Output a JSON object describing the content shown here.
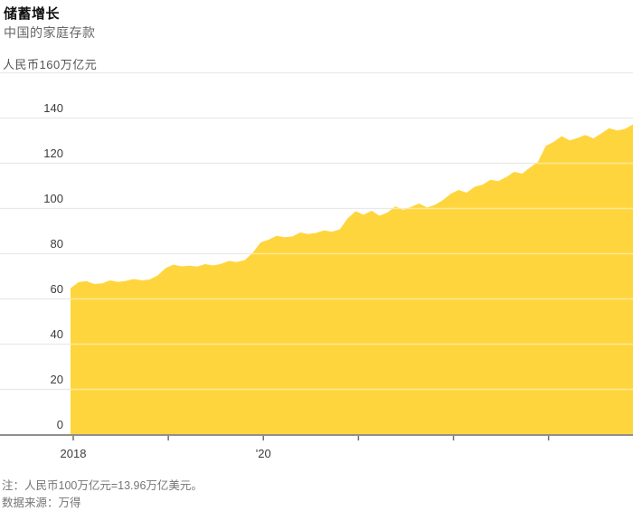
{
  "header": {
    "title": "储蓄增长",
    "subtitle": "中国的家庭存款",
    "unit_label": "人民币160万亿元"
  },
  "footer": {
    "note": "注：人民币100万亿元=13.96万亿美元。",
    "source": "数据来源：万得"
  },
  "colors": {
    "area_fill": "#FFD53E",
    "gridline": "#e9e9e9",
    "gridline_over_area": "rgba(255,255,255,0.45)",
    "axis_line": "#8f8f8f",
    "tick_mark": "#6f6f6f",
    "tick_text": "#3c3c3c"
  },
  "chart_data": {
    "type": "area",
    "title": "储蓄增长",
    "subtitle": "中国的家庭存款",
    "ylabel": "人民币160万亿元",
    "unit": "万亿元 (trillion yuan)",
    "series_name": "中国家庭存款",
    "x_frequency": "monthly",
    "x_start": {
      "year": 2018,
      "month": 1
    },
    "x_end": {
      "year": 2023,
      "month": 12
    },
    "x_tick_years": [
      2018,
      2019,
      2020,
      2021,
      2022,
      2023
    ],
    "x_tick_labels": [
      {
        "year": 2018,
        "label": "2018"
      },
      {
        "year": 2020,
        "label": "'20"
      }
    ],
    "y_ticks": [
      0,
      20,
      40,
      60,
      80,
      100,
      120,
      140
    ],
    "ylim": [
      0,
      160
    ],
    "grid": "horizontal",
    "legend": "none",
    "values": [
      64.5,
      67.2,
      67.7,
      66.4,
      66.7,
      68.0,
      67.3,
      67.8,
      68.6,
      68.0,
      68.4,
      70.2,
      73.4,
      75.0,
      74.2,
      74.5,
      74.1,
      75.2,
      74.6,
      75.3,
      76.6,
      76.1,
      77.0,
      80.2,
      84.8,
      86.0,
      87.7,
      87.1,
      87.4,
      89.2,
      88.5,
      89.0,
      90.1,
      89.5,
      90.6,
      95.5,
      98.6,
      97.0,
      98.8,
      96.6,
      98.0,
      100.7,
      99.2,
      100.5,
      102.0,
      100.2,
      101.4,
      103.5,
      106.3,
      108.0,
      106.8,
      109.4,
      110.3,
      112.5,
      111.9,
      113.7,
      116.0,
      115.2,
      117.9,
      120.4,
      127.5,
      129.3,
      131.8,
      129.9,
      131.0,
      132.3,
      130.8,
      133.0,
      135.3,
      134.3,
      135.0,
      137.0
    ]
  }
}
